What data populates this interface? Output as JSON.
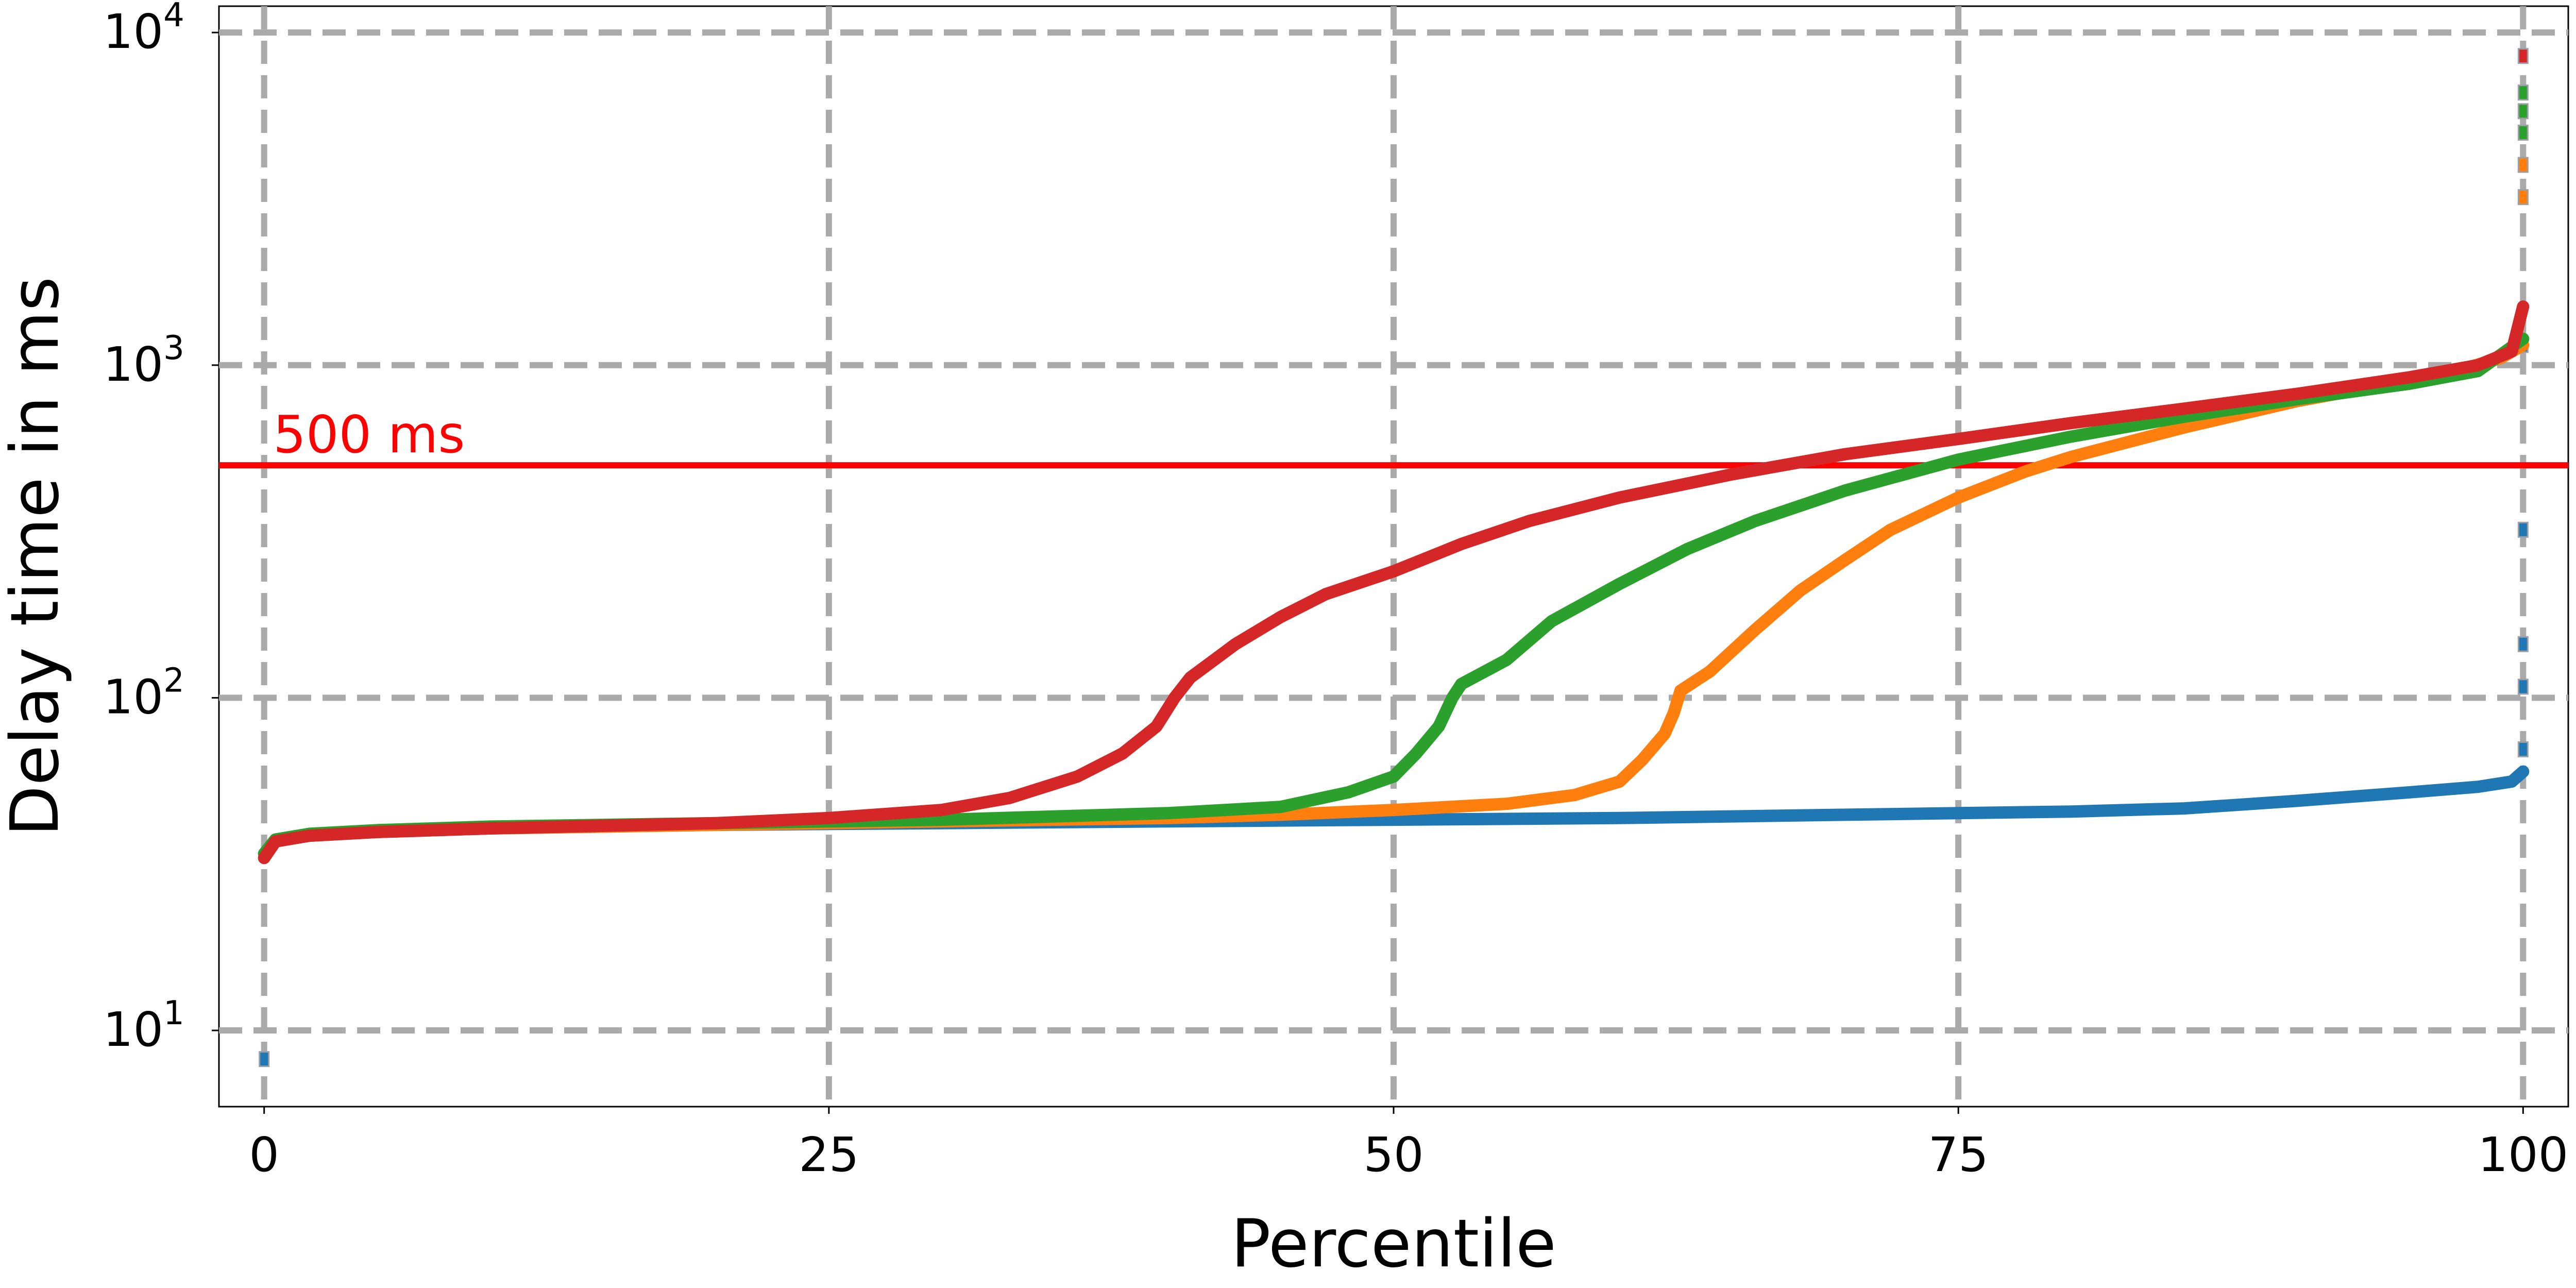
{
  "chart_data": {
    "type": "line",
    "title": "",
    "xlabel": "Percentile",
    "ylabel": "Delay time in ms",
    "xlim": [
      -2,
      102
    ],
    "ylim": [
      5.9,
      12000
    ],
    "yscale": "log",
    "grid": true,
    "grid_style": "dashed",
    "grid_color": "#aaaaaa",
    "x_ticks": [
      0,
      25,
      50,
      75,
      100
    ],
    "x_tick_labels": [
      "0",
      "25",
      "50",
      "75",
      "100"
    ],
    "y_ticks": [
      10,
      100,
      1000,
      10000
    ],
    "y_tick_labels": [
      {
        "base": "10",
        "exp": "1"
      },
      {
        "base": "10",
        "exp": "2"
      },
      {
        "base": "10",
        "exp": "3"
      },
      {
        "base": "10",
        "exp": "4"
      }
    ],
    "reference_line": {
      "y": 500,
      "label": "500 ms",
      "color": "#ff0000"
    },
    "series": [
      {
        "color": "#1f77b4",
        "x": [
          0,
          0.5,
          2,
          5,
          10,
          20,
          30,
          40,
          50,
          60,
          70,
          80,
          85,
          90,
          95,
          98,
          99.5,
          100
        ],
        "y": [
          34,
          37,
          38.5,
          39.5,
          40.5,
          41.5,
          42,
          42.5,
          43,
          43.5,
          44.5,
          45.5,
          46.5,
          49,
          52,
          54,
          56,
          60
        ],
        "outliers": {
          "x": [
            0,
            100,
            100,
            100,
            100,
            100
          ],
          "y": [
            8.2,
            70,
            108,
            145,
            320,
            1150
          ]
        }
      },
      {
        "color": "#ff7f0e",
        "x": [
          0,
          0.5,
          2,
          5,
          10,
          20,
          30,
          40,
          45,
          50,
          55,
          58,
          60,
          61,
          62,
          62.4,
          62.7,
          64,
          66,
          68,
          70,
          72,
          75,
          78,
          80,
          85,
          90,
          95,
          97,
          99,
          100
        ],
        "y": [
          33,
          37,
          38.5,
          39.5,
          40.5,
          41.5,
          42.5,
          43.5,
          44.5,
          46,
          48,
          51,
          56,
          65,
          78,
          90,
          105,
          120,
          160,
          210,
          260,
          320,
          400,
          480,
          530,
          650,
          780,
          900,
          960,
          1050,
          1150
        ],
        "outliers": {
          "x": [
            100,
            100
          ],
          "y": [
            3200,
            4000
          ]
        }
      },
      {
        "color": "#2ca02c",
        "x": [
          0,
          0.5,
          2,
          5,
          10,
          20,
          30,
          40,
          45,
          48,
          50,
          51,
          52,
          52.6,
          53,
          55,
          57,
          60,
          63,
          66,
          70,
          75,
          80,
          85,
          90,
          95,
          98,
          100
        ],
        "y": [
          34,
          37.5,
          39,
          40,
          41,
          42,
          43,
          45,
          47,
          52,
          58,
          68,
          82,
          100,
          110,
          130,
          170,
          220,
          280,
          340,
          420,
          520,
          610,
          700,
          790,
          880,
          960,
          1200
        ],
        "outliers": {
          "x": [
            100,
            100,
            100
          ],
          "y": [
            5000,
            5800,
            6600
          ]
        }
      },
      {
        "color": "#d62728",
        "x": [
          0,
          0.5,
          2,
          5,
          10,
          20,
          25,
          30,
          33,
          36,
          38,
          39.5,
          40.3,
          41,
          43,
          45,
          47,
          50,
          53,
          56,
          60,
          65,
          70,
          75,
          80,
          85,
          90,
          95,
          98,
          99.5,
          100
        ],
        "y": [
          33,
          37,
          38.5,
          39.5,
          40.5,
          42,
          43.5,
          46,
          50,
          58,
          68,
          82,
          100,
          115,
          145,
          175,
          205,
          240,
          290,
          340,
          400,
          470,
          540,
          600,
          670,
          740,
          820,
          920,
          1000,
          1100,
          1500
        ],
        "outliers": {
          "x": [
            100
          ],
          "y": [
            8500
          ]
        }
      }
    ]
  }
}
